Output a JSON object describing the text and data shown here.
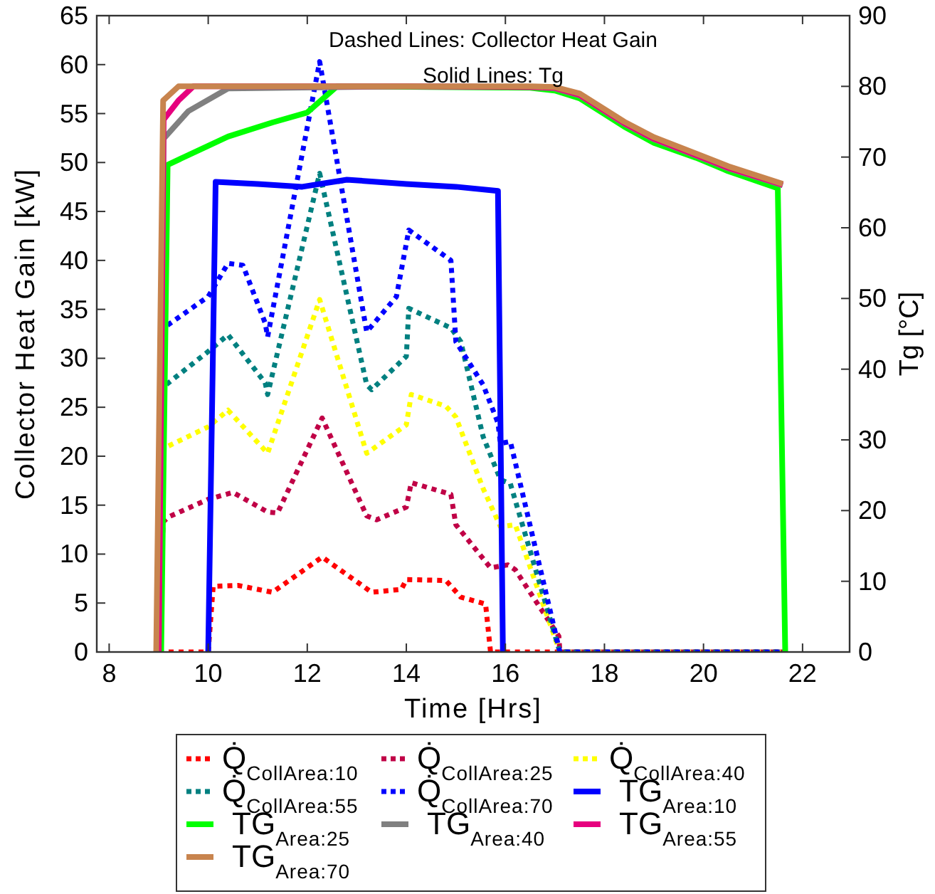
{
  "chart_data": {
    "type": "line",
    "xlabel": "Time [Hrs]",
    "ylabel": "Collector Heat Gain [kW]",
    "y2label": "Tg [°C]",
    "annotations": [
      "Dashed Lines: Collector Heat Gain",
      "Solid Lines: Tg"
    ],
    "xlim": [
      7.75,
      22.95
    ],
    "xticks": [
      8,
      10,
      12,
      14,
      16,
      18,
      20,
      22
    ],
    "ylim": [
      0,
      65
    ],
    "yticks": [
      0,
      5,
      10,
      15,
      20,
      25,
      30,
      35,
      40,
      45,
      50,
      55,
      60,
      65
    ],
    "y2lim": [
      0,
      90
    ],
    "y2ticks": [
      0,
      10,
      20,
      30,
      40,
      50,
      60,
      70,
      80,
      90
    ],
    "grid": false,
    "legend": "bottom",
    "marker": "none",
    "series": [
      {
        "name": "Q̇$_{CollArea:10}$",
        "color": "#ff0000",
        "line_style": "dotted",
        "x": [
          9.0,
          10.0,
          10.1,
          10.6,
          11.3,
          12.3,
          13.3,
          13.9,
          14.0,
          14.8,
          15.1,
          15.6,
          15.7,
          21.6
        ],
        "values": [
          0,
          0,
          6.7,
          6.8,
          6.1,
          9.7,
          6.1,
          6.4,
          7.4,
          7.3,
          5.6,
          4.9,
          0,
          0
        ]
      },
      {
        "name": "Q̇$_{CollArea:25}$",
        "color": "#c00046",
        "line_style": "dotted",
        "x": [
          9.0,
          9.09,
          9.2,
          10.0,
          10.5,
          11.2,
          11.4,
          12.3,
          13.2,
          13.4,
          14.0,
          14.1,
          14.9,
          15.0,
          15.7,
          16.05,
          16.2,
          17.08,
          17.1,
          21.6
        ],
        "values": [
          0,
          13.3,
          13.8,
          15.6,
          16.3,
          14.3,
          14.2,
          23.9,
          13.9,
          13.5,
          14.8,
          17.3,
          16.1,
          13.0,
          8.6,
          8.9,
          8.4,
          1.6,
          0,
          0
        ]
      },
      {
        "name": "Q̇$_{CollArea:40}$",
        "color": "#ffff00",
        "line_style": "dotted",
        "x": [
          9.0,
          9.1,
          10.0,
          10.4,
          11.2,
          12.25,
          13.2,
          14.0,
          14.1,
          14.8,
          15.0,
          15.55,
          15.9,
          16.2,
          17.1,
          21.6
        ],
        "values": [
          0,
          20.8,
          23.0,
          24.7,
          20.3,
          36,
          20.3,
          23.2,
          26.3,
          25.1,
          24.0,
          16.7,
          12.8,
          13.0,
          0,
          0
        ]
      },
      {
        "name": "Q̇$_{CollArea:55}$",
        "color": "#008080",
        "line_style": "dotted",
        "x": [
          9.0,
          9.1,
          10.0,
          10.4,
          11.15,
          11.2,
          12.25,
          13.2,
          13.3,
          14.0,
          14.05,
          14.9,
          15.1,
          15.55,
          15.9,
          16.1,
          17.1,
          21.6
        ],
        "values": [
          0,
          27.1,
          30.7,
          32.4,
          27.5,
          26.3,
          48.9,
          27.3,
          26.8,
          30.2,
          35.1,
          33.1,
          31.7,
          22.0,
          17.6,
          17.2,
          0,
          0
        ]
      },
      {
        "name": "Q̇$_{CollArea:70}$",
        "color": "#0000ff",
        "line_style": "dotted",
        "x": [
          9.0,
          9.1,
          10.0,
          10.4,
          10.7,
          11.15,
          11.2,
          12.25,
          13.2,
          13.8,
          14.05,
          14.9,
          15.0,
          15.55,
          15.85,
          15.9,
          16.1,
          17.1,
          21.6
        ],
        "values": [
          0,
          33.1,
          36.3,
          39.7,
          39.5,
          33.6,
          32.2,
          60.3,
          32.7,
          36.3,
          43.1,
          40.0,
          31.7,
          27.3,
          23.4,
          21.3,
          21.5,
          0,
          0
        ]
      },
      {
        "name": "TG$_{Area:10}$",
        "color": "#0000ff",
        "line_style": "solid",
        "axis": "y2",
        "x": [
          10.0,
          10.15,
          11.0,
          11.9,
          12.8,
          14.0,
          15.0,
          15.85,
          15.95
        ],
        "values": [
          0,
          66.5,
          66.2,
          65.8,
          66.8,
          66.2,
          65.8,
          65.2,
          0
        ]
      },
      {
        "name": "TG$_{Area:25}$",
        "color": "#00ff00",
        "line_style": "solid",
        "axis": "y2",
        "x": [
          9.05,
          9.18,
          10.0,
          10.4,
          11.3,
          12.0,
          12.6,
          16.5,
          17.0,
          17.5,
          18.4,
          19.0,
          19.85,
          20.5,
          21.5,
          21.65
        ],
        "values": [
          0,
          68.9,
          71.6,
          72.9,
          74.9,
          76.3,
          80.0,
          79.8,
          79.4,
          78.3,
          74.3,
          72.0,
          69.9,
          68.0,
          65.6,
          0
        ]
      },
      {
        "name": "TG$_{Area:40}$",
        "color": "#808080",
        "line_style": "solid",
        "axis": "y2",
        "x": [
          9.0,
          9.1,
          9.6,
          10.4,
          14.0,
          16.5,
          17.0,
          17.5,
          18.4,
          19.0,
          19.85,
          20.5,
          21.6
        ],
        "values": [
          0,
          72.6,
          76.5,
          79.7,
          80.0,
          79.9,
          79.7,
          78.7,
          74.7,
          72.5,
          70.2,
          68.4,
          66.0
        ]
      },
      {
        "name": "TG$_{Area:55}$",
        "color": "#e6007e",
        "line_style": "solid",
        "axis": "y2",
        "x": [
          9.0,
          9.1,
          9.4,
          9.7,
          14.0,
          16.5,
          17.0,
          17.5,
          18.4,
          19.0,
          19.85,
          20.5,
          21.6
        ],
        "values": [
          0,
          75.3,
          78.0,
          80.0,
          80.0,
          79.9,
          79.8,
          78.8,
          74.8,
          72.6,
          70.3,
          68.5,
          66.1
        ]
      },
      {
        "name": "TG$_{Area:70}$",
        "color": "#c8844e",
        "line_style": "solid",
        "axis": "y2",
        "x": [
          8.95,
          9.09,
          9.4,
          14.0,
          16.5,
          17.0,
          17.5,
          18.4,
          19.0,
          19.85,
          20.5,
          21.6
        ],
        "values": [
          0,
          78.0,
          80.0,
          80.0,
          80.0,
          79.9,
          79.0,
          75.0,
          72.8,
          70.5,
          68.7,
          66.2
        ]
      }
    ]
  }
}
